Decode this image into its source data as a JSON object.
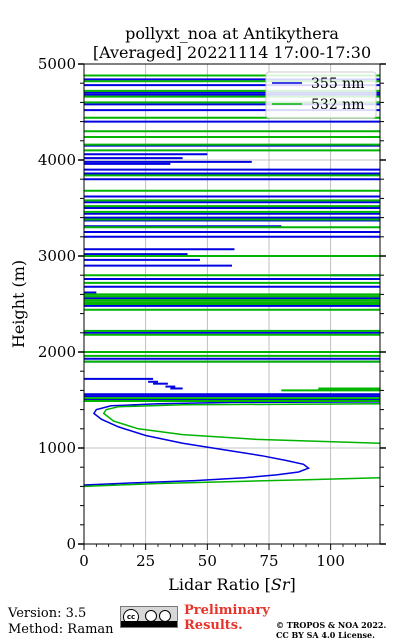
{
  "colors": {
    "c355": "#0000e0",
    "c532": "#00b400"
  },
  "footer": {
    "version": "Version: 3.5",
    "method": "Method: Raman",
    "preliminary_1": "Preliminary",
    "preliminary_2": "Results.",
    "copyright_1": "© TROPOS & NOA 2022.",
    "copyright_2": "CC BY SA 4.0 License."
  },
  "chart_data": {
    "type": "line",
    "title": "pollyxt_noa at Antikythera",
    "subtitle": "[Averaged] 20221114 17:00-17:30",
    "xlabel": "Lidar Ratio [Sr]",
    "ylabel": "Height (m)",
    "xlim": [
      0,
      120
    ],
    "ylim": [
      0,
      5000
    ],
    "xticks": [
      0,
      25,
      50,
      75,
      100
    ],
    "yticks": [
      0,
      1000,
      2000,
      3000,
      4000,
      5000
    ],
    "grid": true,
    "legend_position": "top-right",
    "series": [
      {
        "name": "355 nm",
        "color": "#0000e0",
        "curve": [
          [
            0,
            615
          ],
          [
            20,
            636
          ],
          [
            45,
            660
          ],
          [
            65,
            690
          ],
          [
            78,
            720
          ],
          [
            87,
            750
          ],
          [
            91,
            790
          ],
          [
            89,
            830
          ],
          [
            82,
            870
          ],
          [
            72,
            920
          ],
          [
            57,
            980
          ],
          [
            40,
            1050
          ],
          [
            25,
            1130
          ],
          [
            14,
            1220
          ],
          [
            7,
            1300
          ],
          [
            4,
            1360
          ],
          [
            5,
            1400
          ],
          [
            11,
            1440
          ],
          [
            30,
            1460
          ],
          [
            60,
            1475
          ],
          [
            120,
            1480
          ]
        ],
        "layers": [
          [
            0,
            120,
            1500
          ],
          [
            0,
            120,
            1540
          ],
          [
            0,
            120,
            1560
          ],
          [
            35,
            40,
            1620
          ],
          [
            33,
            37,
            1640
          ],
          [
            28,
            34,
            1670
          ],
          [
            26,
            30,
            1690
          ],
          [
            0,
            28,
            1720
          ],
          [
            0,
            120,
            1900
          ],
          [
            0,
            120,
            1930
          ],
          [
            0,
            120,
            2200
          ],
          [
            0,
            120,
            2480
          ],
          [
            0,
            120,
            2560
          ],
          [
            0,
            5,
            2620
          ],
          [
            0,
            120,
            2680
          ],
          [
            0,
            120,
            2760
          ],
          [
            100,
            120,
            2800
          ],
          [
            0,
            60,
            2900
          ],
          [
            0,
            47,
            2960
          ],
          [
            0,
            42,
            3020
          ],
          [
            0,
            61,
            3070
          ],
          [
            0,
            120,
            3200
          ],
          [
            0,
            120,
            3250
          ],
          [
            0,
            80,
            3310
          ],
          [
            0,
            120,
            3370
          ],
          [
            0,
            120,
            3400
          ],
          [
            0,
            120,
            3440
          ],
          [
            0,
            120,
            3500
          ],
          [
            0,
            120,
            3560
          ],
          [
            0,
            120,
            3620
          ],
          [
            0,
            120,
            3800
          ],
          [
            0,
            120,
            3860
          ],
          [
            0,
            120,
            3900
          ],
          [
            0,
            35,
            3960
          ],
          [
            0,
            68,
            3980
          ],
          [
            0,
            40,
            4020
          ],
          [
            0,
            50,
            4060
          ],
          [
            0,
            120,
            4150
          ],
          [
            0,
            120,
            4400
          ],
          [
            0,
            120,
            4520
          ],
          [
            0,
            120,
            4580
          ],
          [
            0,
            120,
            4680
          ],
          [
            0,
            120,
            4700
          ],
          [
            0,
            120,
            4780
          ],
          [
            0,
            120,
            4840
          ]
        ]
      },
      {
        "name": "532 nm",
        "color": "#00b400",
        "curve": [
          [
            0,
            600
          ],
          [
            30,
            630
          ],
          [
            60,
            650
          ],
          [
            90,
            670
          ],
          [
            120,
            690
          ]
        ],
        "curve2": [
          [
            120,
            1050
          ],
          [
            70,
            1090
          ],
          [
            40,
            1140
          ],
          [
            22,
            1200
          ],
          [
            12,
            1280
          ],
          [
            8,
            1360
          ],
          [
            9,
            1400
          ],
          [
            14,
            1430
          ],
          [
            40,
            1450
          ],
          [
            120,
            1460
          ]
        ],
        "layers": [
          [
            0,
            120,
            1490
          ],
          [
            0,
            120,
            1520
          ],
          [
            80,
            120,
            1600
          ],
          [
            95,
            120,
            1620
          ],
          [
            0,
            120,
            1900
          ],
          [
            0,
            120,
            1960
          ],
          [
            0,
            120,
            2000
          ],
          [
            0,
            120,
            2180
          ],
          [
            0,
            120,
            2220
          ],
          [
            0,
            120,
            2440
          ],
          [
            0,
            120,
            2500
          ],
          [
            0,
            120,
            2520
          ],
          [
            0,
            120,
            2540
          ],
          [
            0,
            120,
            2580
          ],
          [
            0,
            120,
            2600
          ],
          [
            0,
            120,
            2720
          ],
          [
            0,
            120,
            2800
          ],
          [
            0,
            120,
            3000
          ],
          [
            0,
            120,
            3300
          ],
          [
            0,
            120,
            3380
          ],
          [
            0,
            120,
            3460
          ],
          [
            0,
            120,
            3520
          ],
          [
            0,
            120,
            3580
          ],
          [
            0,
            120,
            3680
          ],
          [
            0,
            120,
            3840
          ],
          [
            0,
            120,
            4100
          ],
          [
            0,
            120,
            4160
          ],
          [
            0,
            120,
            4240
          ],
          [
            0,
            120,
            4300
          ],
          [
            0,
            120,
            4440
          ],
          [
            0,
            120,
            4600
          ],
          [
            0,
            120,
            4660
          ],
          [
            0,
            120,
            4720
          ],
          [
            0,
            120,
            4820
          ],
          [
            0,
            120,
            4880
          ]
        ]
      }
    ]
  }
}
